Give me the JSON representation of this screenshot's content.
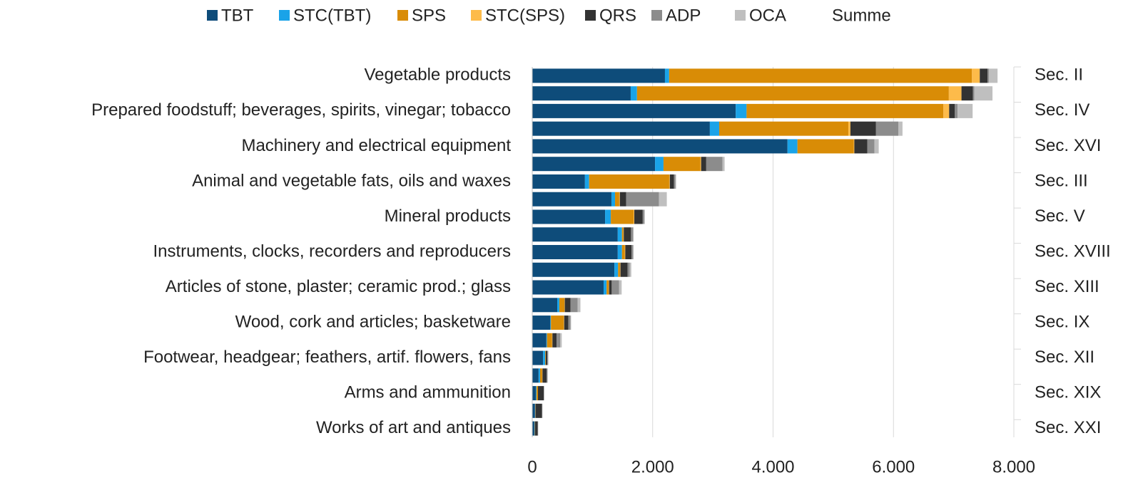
{
  "chart_data": {
    "type": "stacked_barh",
    "categories": [
      "Vegetable products",
      null,
      "Prepared foodstuff; beverages, spirits, vinegar; tobacco",
      null,
      "Machinery and electrical equipment",
      null,
      "Animal and vegetable fats, oils and waxes",
      null,
      "Mineral products",
      null,
      "Instruments, clocks, recorders and reproducers",
      null,
      "Articles of stone, plaster; ceramic prod.; glass",
      null,
      "Wood, cork and articles; basketware",
      null,
      "Footwear, headgear; feathers, artif. flowers, fans",
      null,
      "Arms and ammunition",
      null,
      "Works of art and antiques"
    ],
    "section_labels": [
      "Sec. II",
      null,
      "Sec. IV",
      null,
      "Sec. XVI",
      null,
      "Sec. III",
      null,
      "Sec. V",
      null,
      "Sec. XVIII",
      null,
      "Sec. XIII",
      null,
      "Sec. IX",
      null,
      "Sec. XII",
      null,
      "Sec. XIX",
      null,
      "Sec. XXI"
    ],
    "series": [
      {
        "name": "TBT",
        "color": "#0e4c7a",
        "values": [
          2204,
          1635,
          3380,
          2950,
          4240,
          2040,
          875,
          1315,
          1210,
          1420,
          1420,
          1365,
          1185,
          415,
          300,
          235,
          180,
          105,
          60,
          45,
          35
        ]
      },
      {
        "name": "STC(TBT)",
        "color": "#1aa3e8",
        "values": [
          70,
          105,
          180,
          155,
          165,
          140,
          70,
          60,
          95,
          70,
          70,
          60,
          50,
          35,
          10,
          10,
          35,
          25,
          10,
          5,
          5
        ]
      },
      {
        "name": "SPS",
        "color": "#d98c06",
        "values": [
          5030,
          5180,
          3270,
          2145,
          935,
          615,
          1330,
          70,
          380,
          25,
          45,
          35,
          35,
          85,
          215,
          85,
          10,
          35,
          25,
          5,
          5
        ]
      },
      {
        "name": "STC(SPS)",
        "color": "#fdbb4a",
        "values": [
          130,
          210,
          95,
          35,
          10,
          10,
          10,
          10,
          10,
          5,
          10,
          5,
          5,
          5,
          5,
          5,
          0,
          5,
          0,
          0,
          0
        ]
      },
      {
        "name": "QRS",
        "color": "#333333",
        "values": [
          130,
          190,
          95,
          425,
          215,
          85,
          70,
          105,
          140,
          120,
          105,
          120,
          45,
          95,
          70,
          70,
          25,
          70,
          95,
          105,
          45
        ]
      },
      {
        "name": "ADP",
        "color": "#8c8c8c",
        "values": [
          25,
          25,
          45,
          370,
          120,
          270,
          25,
          545,
          25,
          35,
          25,
          35,
          120,
          120,
          35,
          60,
          10,
          10,
          5,
          5,
          5
        ]
      },
      {
        "name": "OCA",
        "color": "#bfbfbf",
        "values": [
          140,
          300,
          250,
          70,
          70,
          35,
          10,
          130,
          10,
          10,
          10,
          25,
          45,
          45,
          10,
          25,
          10,
          10,
          5,
          5,
          5
        ]
      },
      {
        "name": "Summe",
        "color": "none",
        "values": [
          null,
          null,
          null,
          null,
          null,
          null,
          null,
          null,
          null,
          null,
          null,
          null,
          null,
          null,
          null,
          null,
          null,
          null,
          null,
          null,
          null
        ]
      }
    ],
    "xlim": [
      0,
      8000
    ],
    "xticks": [
      0,
      {
        "value": 2000,
        "label": "2.000"
      },
      {
        "value": 4000,
        "label": "4.000"
      },
      {
        "value": 6000,
        "label": "6.000"
      },
      {
        "value": 8000,
        "label": "8.000"
      }
    ],
    "grid": true,
    "legend": "top"
  }
}
